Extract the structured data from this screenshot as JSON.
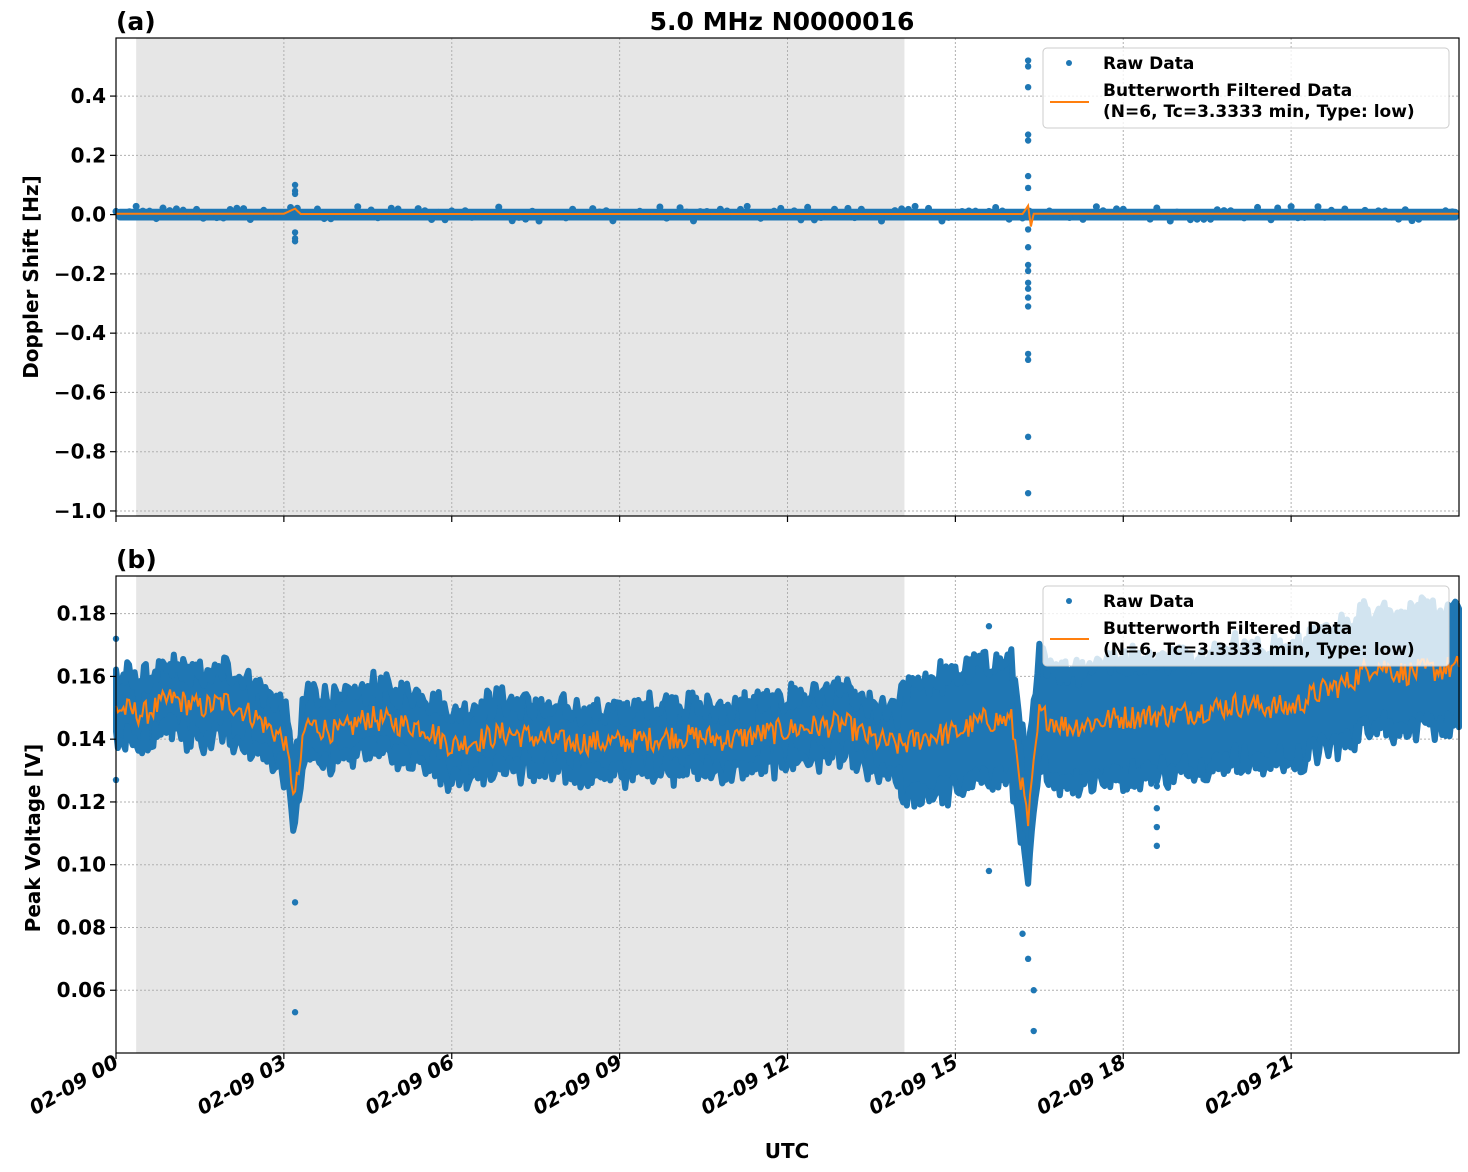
{
  "figure": {
    "title": "5.0 MHz N0000016",
    "xlabel": "UTC",
    "x_ticks": [
      "02-09 00",
      "02-09 03",
      "02-09 06",
      "02-09 09",
      "02-09 12",
      "02-09 15",
      "02-09 18",
      "02-09 21"
    ]
  },
  "panels": [
    {
      "label": "(a)",
      "ylabel": "Doppler Shift [Hz]",
      "y_ticks": [
        "0.4",
        "0.2",
        "0.0",
        "−0.2",
        "−0.4",
        "−0.6",
        "−0.8",
        "−1.0"
      ],
      "legend": {
        "raw": "Raw Data",
        "filtered_line1": "Butterworth Filtered Data",
        "filtered_line2": "(N=6, Tc=3.3333 min, Type: low)"
      }
    },
    {
      "label": "(b)",
      "ylabel": "Peak Voltage [V]",
      "y_ticks": [
        "0.18",
        "0.16",
        "0.14",
        "0.12",
        "0.10",
        "0.08",
        "0.06"
      ],
      "legend": {
        "raw": "Raw Data",
        "filtered_line1": "Butterworth Filtered Data",
        "filtered_line2": "(N=6, Tc=3.3333 min, Type: low)"
      }
    }
  ],
  "colors": {
    "raw": "#1f77b4",
    "filtered": "#ff7f0e",
    "shade": "#e6e6e6",
    "grid": "#b0b0b0"
  },
  "chart_data": [
    {
      "type": "scatter",
      "title": "5.0 MHz N0000016",
      "panel": "(a)",
      "xlabel": "UTC",
      "ylabel": "Doppler Shift [Hz]",
      "x_unit": "hours since 02-09 00 UTC",
      "xlim": [
        0,
        24
      ],
      "ylim": [
        -1.017,
        0.596
      ],
      "grid": true,
      "legend_position": "upper right",
      "shaded_region_hours": [
        0.36,
        14.09
      ],
      "series": [
        {
          "name": "Raw Data",
          "style": "markers",
          "baseline_band": [
            -0.02,
            0.02
          ],
          "outliers": [
            {
              "x": 3.2,
              "y": 0.1
            },
            {
              "x": 3.2,
              "y": 0.08
            },
            {
              "x": 3.2,
              "y": 0.07
            },
            {
              "x": 3.2,
              "y": -0.06
            },
            {
              "x": 3.2,
              "y": -0.08
            },
            {
              "x": 3.2,
              "y": -0.09
            },
            {
              "x": 16.3,
              "y": 0.52
            },
            {
              "x": 16.3,
              "y": 0.5
            },
            {
              "x": 16.3,
              "y": 0.43
            },
            {
              "x": 16.3,
              "y": 0.27
            },
            {
              "x": 16.3,
              "y": 0.25
            },
            {
              "x": 16.3,
              "y": 0.13
            },
            {
              "x": 16.3,
              "y": 0.09
            },
            {
              "x": 16.3,
              "y": -0.05
            },
            {
              "x": 16.3,
              "y": -0.11
            },
            {
              "x": 16.3,
              "y": -0.17
            },
            {
              "x": 16.3,
              "y": -0.19
            },
            {
              "x": 16.3,
              "y": -0.23
            },
            {
              "x": 16.3,
              "y": -0.25
            },
            {
              "x": 16.3,
              "y": -0.28
            },
            {
              "x": 16.3,
              "y": -0.31
            },
            {
              "x": 16.3,
              "y": -0.47
            },
            {
              "x": 16.3,
              "y": -0.49
            },
            {
              "x": 16.3,
              "y": -0.75
            },
            {
              "x": 16.3,
              "y": -0.94
            }
          ]
        },
        {
          "name": "Butterworth Filtered Data (N=6, Tc=3.3333 min, Type: low)",
          "style": "line",
          "x": [
            0,
            3.0,
            3.2,
            3.3,
            16.2,
            16.3,
            16.35,
            16.4,
            24
          ],
          "y": [
            0.003,
            0.003,
            0.02,
            0.002,
            0.002,
            0.03,
            -0.04,
            0.003,
            0.003
          ]
        }
      ]
    },
    {
      "type": "scatter",
      "panel": "(b)",
      "xlabel": "UTC",
      "ylabel": "Peak Voltage [V]",
      "x_unit": "hours since 02-09 00 UTC",
      "xlim": [
        0,
        24
      ],
      "ylim": [
        0.04,
        0.192
      ],
      "grid": true,
      "legend_position": "upper right",
      "shaded_region_hours": [
        0.36,
        14.09
      ],
      "series": [
        {
          "name": "Raw Data",
          "style": "markers",
          "band_spread": 0.008,
          "outliers": [
            {
              "x": 0.0,
              "y": 0.172
            },
            {
              "x": 0.0,
              "y": 0.127
            },
            {
              "x": 3.2,
              "y": 0.122
            },
            {
              "x": 3.2,
              "y": 0.088
            },
            {
              "x": 3.2,
              "y": 0.053
            },
            {
              "x": 15.6,
              "y": 0.176
            },
            {
              "x": 15.6,
              "y": 0.098
            },
            {
              "x": 16.2,
              "y": 0.078
            },
            {
              "x": 16.3,
              "y": 0.07
            },
            {
              "x": 16.4,
              "y": 0.06
            },
            {
              "x": 16.4,
              "y": 0.047
            },
            {
              "x": 18.6,
              "y": 0.125
            },
            {
              "x": 18.6,
              "y": 0.118
            },
            {
              "x": 18.6,
              "y": 0.112
            },
            {
              "x": 18.6,
              "y": 0.106
            }
          ]
        },
        {
          "name": "Butterworth Filtered Data (N=6, Tc=3.3333 min, Type: low)",
          "style": "line",
          "x": [
            0,
            0.5,
            1.0,
            1.5,
            2.0,
            2.5,
            3.0,
            3.2,
            3.4,
            4.0,
            4.5,
            5.0,
            5.5,
            6.0,
            6.5,
            7.0,
            8.0,
            9.0,
            10.0,
            11.0,
            12.0,
            12.5,
            13.0,
            13.5,
            14.0,
            14.5,
            15.0,
            15.5,
            16.0,
            16.3,
            16.5,
            17.0,
            18.0,
            19.0,
            20.0,
            21.0,
            21.5,
            22.0,
            22.5,
            23.0,
            23.5,
            24.0
          ],
          "y": [
            0.15,
            0.148,
            0.153,
            0.15,
            0.152,
            0.147,
            0.14,
            0.122,
            0.145,
            0.142,
            0.147,
            0.145,
            0.144,
            0.138,
            0.14,
            0.142,
            0.139,
            0.139,
            0.141,
            0.14,
            0.143,
            0.144,
            0.145,
            0.14,
            0.138,
            0.141,
            0.142,
            0.146,
            0.146,
            0.113,
            0.148,
            0.144,
            0.147,
            0.148,
            0.151,
            0.15,
            0.155,
            0.158,
            0.164,
            0.161,
            0.162,
            0.163
          ]
        }
      ]
    }
  ]
}
